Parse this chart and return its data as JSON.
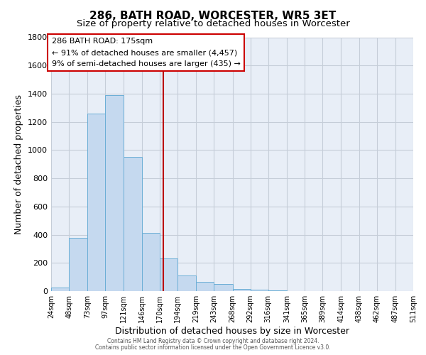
{
  "title": "286, BATH ROAD, WORCESTER, WR5 3ET",
  "subtitle": "Size of property relative to detached houses in Worcester",
  "xlabel": "Distribution of detached houses by size in Worcester",
  "ylabel": "Number of detached properties",
  "bar_color": "#c5d9ef",
  "bar_edge_color": "#6baed6",
  "bg_color": "#e8eef7",
  "grid_color": "#c5cdd8",
  "vline_x": 175,
  "vline_color": "#bb0000",
  "annotation_title": "286 BATH ROAD: 175sqm",
  "annotation_line1": "← 91% of detached houses are smaller (4,457)",
  "annotation_line2": "9% of semi-detached houses are larger (435) →",
  "annotation_box_color": "#cc0000",
  "footnote1": "Contains HM Land Registry data © Crown copyright and database right 2024.",
  "footnote2": "Contains public sector information licensed under the Open Government Licence v3.0.",
  "bin_edges": [
    24,
    48,
    73,
    97,
    121,
    146,
    170,
    194,
    219,
    243,
    268,
    292,
    316,
    341,
    365,
    389,
    414,
    438,
    462,
    487,
    511
  ],
  "bar_heights": [
    25,
    380,
    1260,
    1390,
    950,
    415,
    230,
    110,
    65,
    50,
    15,
    10,
    5,
    2,
    1,
    1,
    0,
    0,
    0,
    0
  ],
  "ylim": [
    0,
    1800
  ],
  "yticks": [
    0,
    200,
    400,
    600,
    800,
    1000,
    1200,
    1400,
    1600,
    1800
  ],
  "title_fontsize": 11,
  "subtitle_fontsize": 9.5,
  "tick_fontsize": 7,
  "label_fontsize": 9,
  "annotation_fontsize": 8,
  "footnote_fontsize": 5.5
}
